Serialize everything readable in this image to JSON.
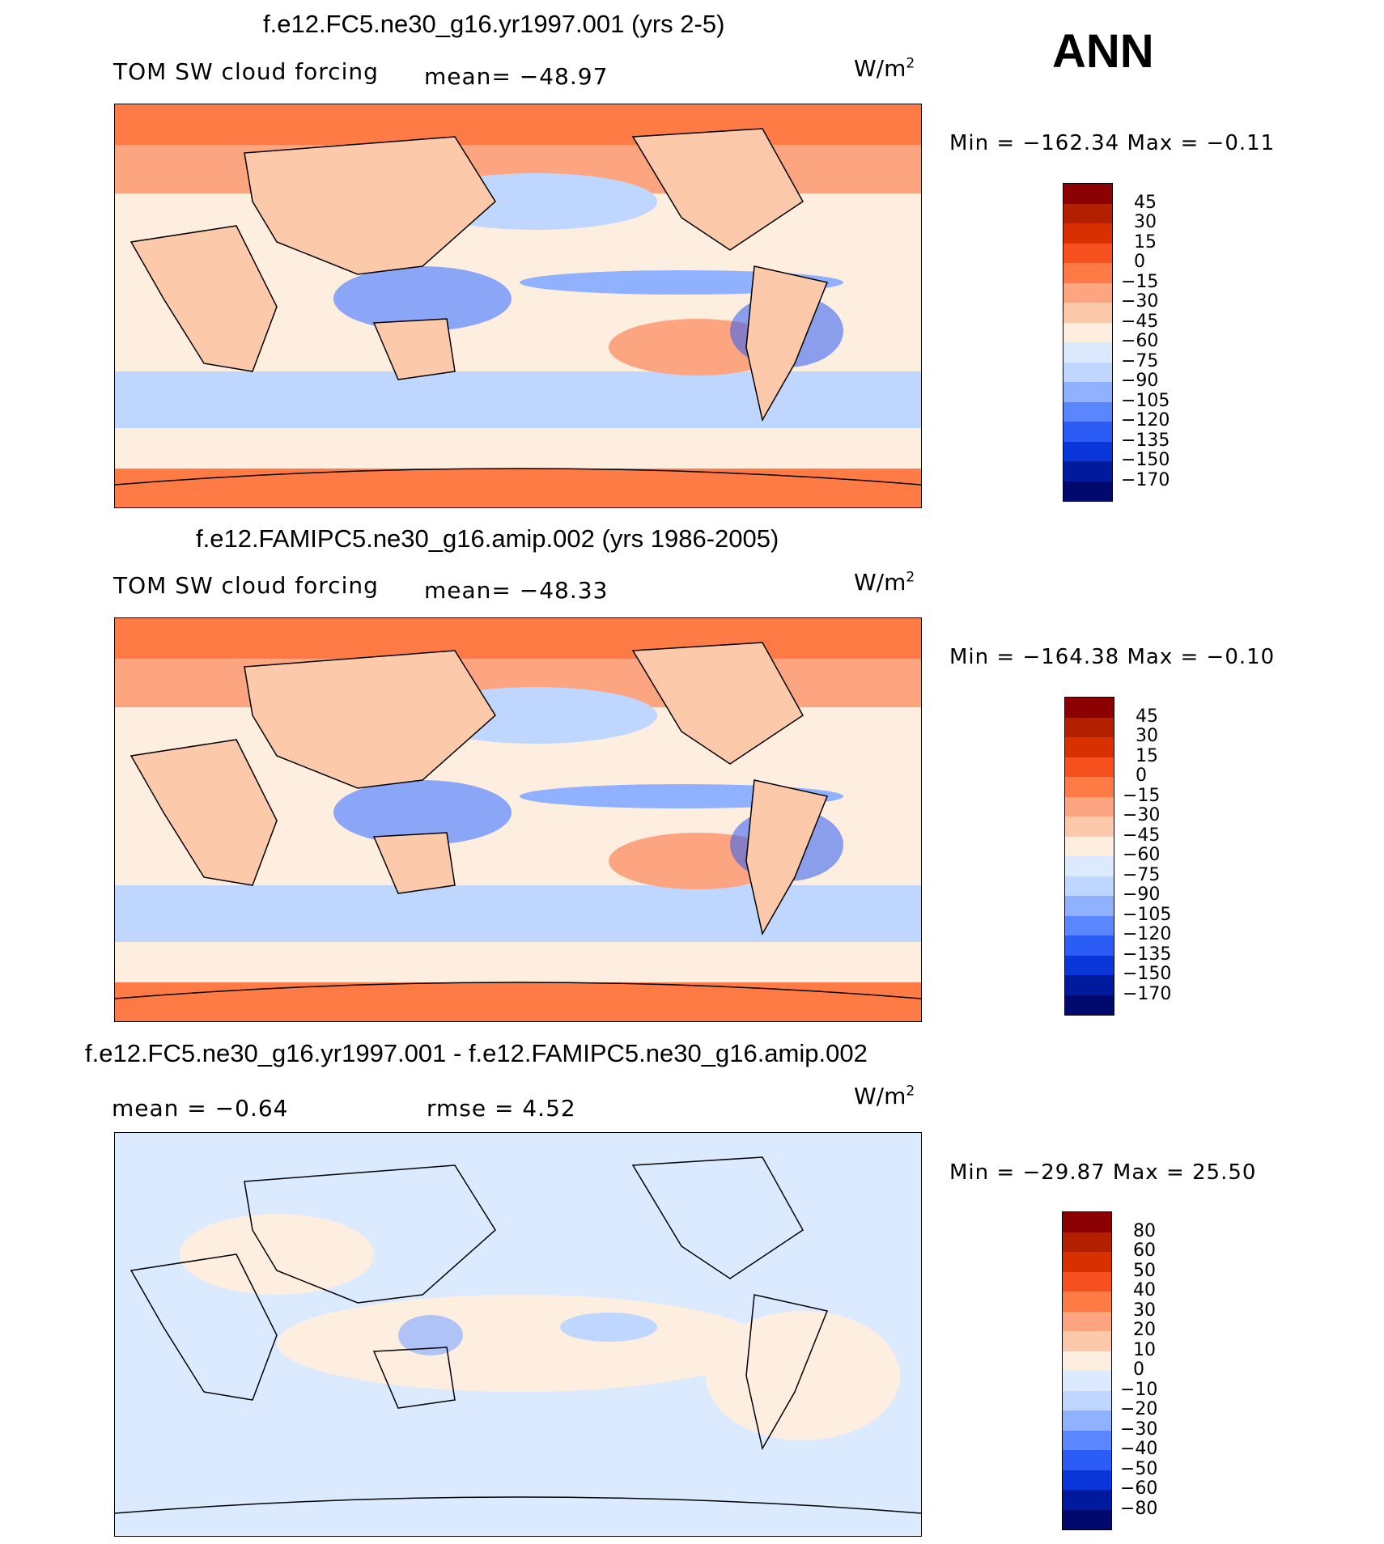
{
  "season": "ANN",
  "panels": [
    {
      "title": "f.e12.FC5.ne30_g16.yr1997.001 (yrs 2-5)",
      "left_text": "TOM SW cloud forcing",
      "center_text": "mean= −48.97",
      "units_base": "W/m",
      "units_exp": "2",
      "minmax": "Min = −162.34 Max =  −0.11",
      "colorbar_labels": [
        "45",
        "30",
        "15",
        "0",
        "−15",
        "−30",
        "−45",
        "−60",
        "−75",
        "−90",
        "−105",
        "−120",
        "−135",
        "−150",
        "−170"
      ],
      "colorbar_colors": [
        "#8b0000",
        "#b22000",
        "#d83000",
        "#f5501e",
        "#ff7b45",
        "#fda480",
        "#fdc9ab",
        "#feeee0",
        "#dbeaff",
        "#bfd6ff",
        "#8fb1ff",
        "#5a87ff",
        "#2b5cf5",
        "#0a35d8",
        "#001a9e",
        "#000a6e"
      ],
      "land_color": "#fdc9ab"
    },
    {
      "title": "f.e12.FAMIPC5.ne30_g16.amip.002 (yrs 1986-2005)",
      "left_text": "TOM SW cloud forcing",
      "center_text": "mean= −48.33",
      "units_base": "W/m",
      "units_exp": "2",
      "minmax": "Min = −164.38 Max =  −0.10",
      "colorbar_labels": [
        "45",
        "30",
        "15",
        "0",
        "−15",
        "−30",
        "−45",
        "−60",
        "−75",
        "−90",
        "−105",
        "−120",
        "−135",
        "−150",
        "−170"
      ],
      "colorbar_colors": [
        "#8b0000",
        "#b22000",
        "#d83000",
        "#f5501e",
        "#ff7b45",
        "#fda480",
        "#fdc9ab",
        "#feeee0",
        "#dbeaff",
        "#bfd6ff",
        "#8fb1ff",
        "#5a87ff",
        "#2b5cf5",
        "#0a35d8",
        "#001a9e",
        "#000a6e"
      ],
      "land_color": "#fdc9ab"
    },
    {
      "title": "f.e12.FC5.ne30_g16.yr1997.001 - f.e12.FAMIPC5.ne30_g16.amip.002",
      "left_text": "mean =  −0.64",
      "center_text": "rmse =   4.52",
      "units_base": "W/m",
      "units_exp": "2",
      "minmax": "Min = −29.87 Max =  25.50",
      "colorbar_labels": [
        "80",
        "60",
        "50",
        "40",
        "30",
        "20",
        "10",
        "0",
        "−10",
        "−20",
        "−30",
        "−40",
        "−50",
        "−60",
        "−80"
      ],
      "colorbar_colors": [
        "#8b0000",
        "#b22000",
        "#d83000",
        "#f5501e",
        "#ff7b45",
        "#fda480",
        "#fdc9ab",
        "#feeee0",
        "#dbeaff",
        "#bfd6ff",
        "#8fb1ff",
        "#5a87ff",
        "#2b5cf5",
        "#0a35d8",
        "#001a9e",
        "#000a6e"
      ],
      "land_color": "#feeee0"
    }
  ]
}
